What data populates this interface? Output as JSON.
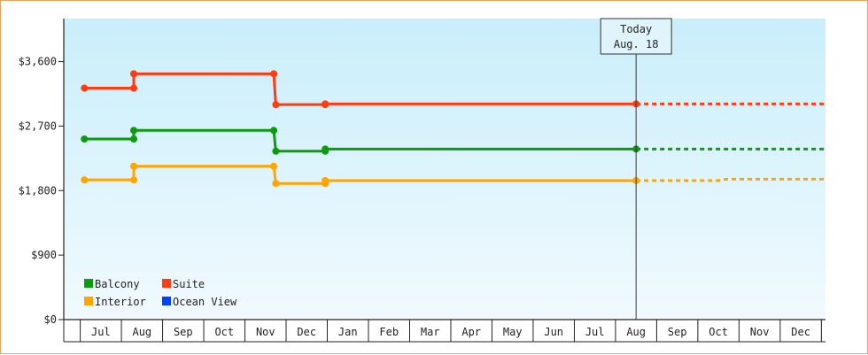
{
  "chart_data": {
    "type": "line",
    "step": true,
    "y_prefix": "$",
    "ylim": [
      0,
      4200
    ],
    "y_ticks": [
      0,
      900,
      1800,
      2700,
      3600
    ],
    "y_tick_labels": [
      "$0",
      "$900",
      "$1,800",
      "$2,700",
      "$3,600"
    ],
    "x_ticks": [
      "Jul",
      "Aug",
      "Sep",
      "Oct",
      "Nov",
      "Dec",
      "Jan",
      "Feb",
      "Mar",
      "Apr",
      "May",
      "Jun",
      "Jul",
      "Aug",
      "Sep",
      "Oct",
      "Nov",
      "Dec"
    ],
    "today": {
      "line1": "Today",
      "line2": "Aug. 18",
      "x": 13.4
    },
    "series": [
      {
        "name": "Suite",
        "color": "#ff3c10",
        "points": [
          [
            0.0,
            3230
          ],
          [
            1.2,
            3230
          ],
          [
            1.2,
            3430
          ],
          [
            4.6,
            3430
          ],
          [
            4.65,
            3000
          ],
          [
            5.85,
            3000
          ],
          [
            5.85,
            3010
          ],
          [
            13.4,
            3010
          ]
        ],
        "markers": [
          [
            0.0,
            3230
          ],
          [
            1.2,
            3230
          ],
          [
            1.2,
            3430
          ],
          [
            4.6,
            3430
          ],
          [
            4.65,
            3000
          ],
          [
            5.85,
            3000
          ],
          [
            5.85,
            3010
          ],
          [
            13.4,
            3010
          ]
        ],
        "forecast": [
          [
            13.4,
            3010
          ],
          [
            18.0,
            3010
          ]
        ]
      },
      {
        "name": "Balcony",
        "color": "#0e9a0e",
        "points": [
          [
            0.0,
            2520
          ],
          [
            1.2,
            2520
          ],
          [
            1.2,
            2640
          ],
          [
            4.6,
            2640
          ],
          [
            4.65,
            2350
          ],
          [
            5.85,
            2350
          ],
          [
            5.85,
            2380
          ],
          [
            13.4,
            2380
          ]
        ],
        "markers": [
          [
            0.0,
            2520
          ],
          [
            1.2,
            2520
          ],
          [
            1.2,
            2640
          ],
          [
            4.6,
            2640
          ],
          [
            4.65,
            2350
          ],
          [
            5.85,
            2350
          ],
          [
            5.85,
            2380
          ],
          [
            13.4,
            2380
          ]
        ],
        "forecast": [
          [
            13.4,
            2380
          ],
          [
            18.0,
            2380
          ]
        ]
      },
      {
        "name": "Interior",
        "color": "#ffa500",
        "points": [
          [
            0.0,
            1950
          ],
          [
            1.2,
            1950
          ],
          [
            1.2,
            2140
          ],
          [
            4.6,
            2140
          ],
          [
            4.65,
            1900
          ],
          [
            5.85,
            1900
          ],
          [
            5.85,
            1940
          ],
          [
            13.4,
            1940
          ]
        ],
        "markers": [
          [
            0.0,
            1950
          ],
          [
            1.2,
            1950
          ],
          [
            1.2,
            2140
          ],
          [
            4.6,
            2140
          ],
          [
            4.65,
            1900
          ],
          [
            5.85,
            1900
          ],
          [
            5.85,
            1940
          ],
          [
            13.4,
            1940
          ]
        ],
        "forecast": [
          [
            13.4,
            1940
          ],
          [
            15.4,
            1940
          ],
          [
            15.6,
            1960
          ],
          [
            18.0,
            1960
          ]
        ]
      },
      {
        "name": "Ocean View",
        "color": "#0044ff",
        "points": [],
        "markers": [],
        "forecast": []
      }
    ],
    "legend": [
      {
        "name": "Balcony",
        "color": "#0e9a0e"
      },
      {
        "name": "Suite",
        "color": "#ff3c10"
      },
      {
        "name": "Interior",
        "color": "#ffa500"
      },
      {
        "name": "Ocean View",
        "color": "#0044ff"
      }
    ],
    "legend_position": "bottom-left",
    "background_gradient": [
      "#c9eefb",
      "#f1fafe"
    ]
  }
}
